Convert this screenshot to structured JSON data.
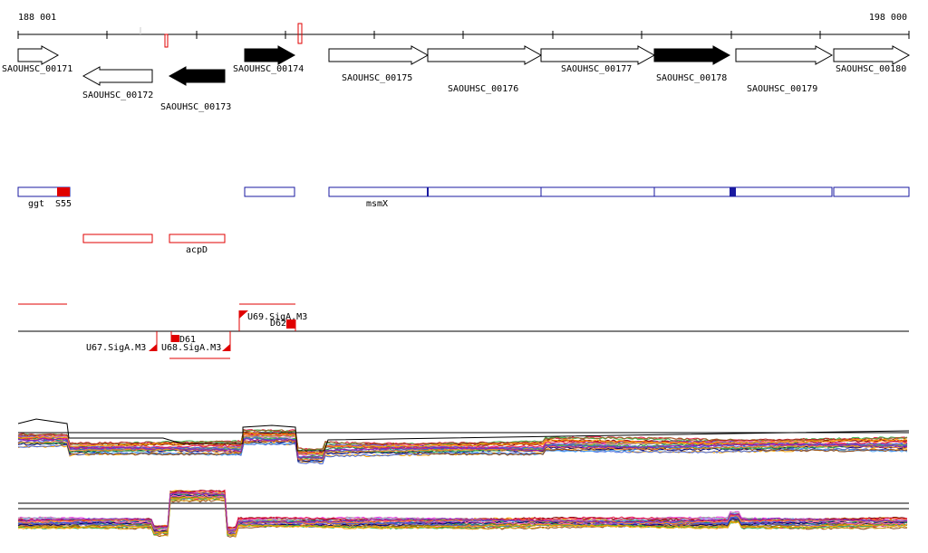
{
  "ruler": {
    "start_label": "188 001",
    "end_label": "198 000"
  },
  "genes": [
    {
      "label": "SAOUHSC_00171",
      "dir": "fwd",
      "filled": false
    },
    {
      "label": "SAOUHSC_00172",
      "dir": "rev",
      "filled": false
    },
    {
      "label": "SAOUHSC_00173",
      "dir": "rev",
      "filled": true
    },
    {
      "label": "SAOUHSC_00174",
      "dir": "fwd",
      "filled": true
    },
    {
      "label": "SAOUHSC_00175",
      "dir": "fwd",
      "filled": false
    },
    {
      "label": "SAOUHSC_00176",
      "dir": "fwd",
      "filled": false
    },
    {
      "label": "SAOUHSC_00177",
      "dir": "fwd",
      "filled": false
    },
    {
      "label": "SAOUHSC_00178",
      "dir": "fwd",
      "filled": true
    },
    {
      "label": "SAOUHSC_00179",
      "dir": "fwd",
      "filled": false
    },
    {
      "label": "SAOUHSC_00180",
      "dir": "fwd",
      "filled": false
    }
  ],
  "annotation_labels": {
    "ggt": "ggt",
    "s55": "S55",
    "msmx": "msmX",
    "acpd": "acpD"
  },
  "regulatory_labels": {
    "u67": "U67.SigA.M3",
    "u68": "U68.SigA.M3",
    "u69": "U69.SigA.M3",
    "d61": "D61",
    "d62": "D62"
  },
  "colors": {
    "gene_outline": "#000000",
    "gene_fill": "#000000",
    "feature_blue": "#1a1aa0",
    "feature_red": "#e00000",
    "track_line": "#000000"
  },
  "icons": {
    "forward_gene": "arrow-right",
    "reverse_gene": "arrow-left",
    "promoter": "flag-triangle"
  }
}
